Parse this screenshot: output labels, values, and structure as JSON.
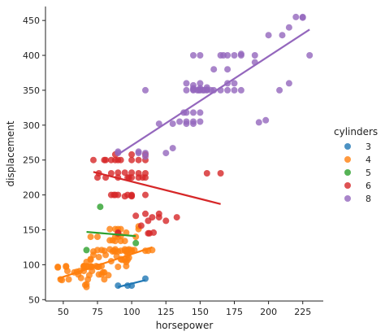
{
  "chart_data": {
    "type": "scatter",
    "xlabel": "horsepower",
    "ylabel": "displacement",
    "xlim": [
      37,
      240
    ],
    "ylim": [
      48,
      470
    ],
    "xticks": [
      50,
      75,
      100,
      125,
      150,
      175,
      200,
      225
    ],
    "yticks": [
      50,
      100,
      150,
      200,
      250,
      300,
      350,
      400,
      450
    ],
    "grid": false,
    "legend": {
      "title": "cylinders",
      "placement": "right"
    },
    "series": [
      {
        "name": "3",
        "color": "#1f77b4",
        "points": [
          [
            90,
            70
          ],
          [
            97,
            70
          ],
          [
            100,
            70
          ],
          [
            110,
            80
          ]
        ],
        "fit": [
          [
            90,
            68
          ],
          [
            110,
            78
          ]
        ]
      },
      {
        "name": "4",
        "color": "#ff7f0e",
        "points": [
          [
            46,
            97
          ],
          [
            46,
            96
          ],
          [
            48,
            79
          ],
          [
            49,
            78
          ],
          [
            52,
            98
          ],
          [
            52,
            97
          ],
          [
            53,
            91
          ],
          [
            54,
            79
          ],
          [
            58,
            89
          ],
          [
            60,
            90
          ],
          [
            61,
            86
          ],
          [
            62,
            91
          ],
          [
            63,
            81
          ],
          [
            65,
            98
          ],
          [
            65,
            98
          ],
          [
            65,
            97
          ],
          [
            65,
            91
          ],
          [
            66,
            71
          ],
          [
            67,
            68
          ],
          [
            67,
            72
          ],
          [
            67,
            98
          ],
          [
            67,
            104
          ],
          [
            68,
            97
          ],
          [
            68,
            79
          ],
          [
            69,
            85
          ],
          [
            70,
            98
          ],
          [
            70,
            97
          ],
          [
            70,
            108
          ],
          [
            70,
            107
          ],
          [
            70,
            140
          ],
          [
            71,
            91
          ],
          [
            71,
            97
          ],
          [
            72,
            119
          ],
          [
            72,
            114
          ],
          [
            74,
            98
          ],
          [
            75,
            97
          ],
          [
            75,
            121
          ],
          [
            75,
            140
          ],
          [
            76,
            97
          ],
          [
            76,
            86
          ],
          [
            76,
            111
          ],
          [
            78,
            86
          ],
          [
            78,
            98
          ],
          [
            78,
            121
          ],
          [
            79,
            89
          ],
          [
            80,
            79
          ],
          [
            80,
            89
          ],
          [
            80,
            120
          ],
          [
            81,
            114
          ],
          [
            83,
            85
          ],
          [
            84,
            122
          ],
          [
            84,
            135
          ],
          [
            84,
            151
          ],
          [
            85,
            105
          ],
          [
            86,
            119
          ],
          [
            86,
            135
          ],
          [
            87,
            120
          ],
          [
            88,
            119
          ],
          [
            88,
            122
          ],
          [
            88,
            134
          ],
          [
            88,
            140
          ],
          [
            88,
            151
          ],
          [
            89,
            112
          ],
          [
            90,
            97
          ],
          [
            90,
            119
          ],
          [
            90,
            140
          ],
          [
            90,
            151
          ],
          [
            92,
            108
          ],
          [
            92,
            120
          ],
          [
            92,
            134
          ],
          [
            92,
            141
          ],
          [
            92,
            151
          ],
          [
            93,
            107
          ],
          [
            95,
            107
          ],
          [
            95,
            120
          ],
          [
            95,
            122
          ],
          [
            95,
            134
          ],
          [
            96,
            98
          ],
          [
            96,
            104
          ],
          [
            96,
            119
          ],
          [
            96,
            146
          ],
          [
            97,
            107
          ],
          [
            97,
            114
          ],
          [
            97,
            119
          ],
          [
            97,
            121
          ],
          [
            98,
            122
          ],
          [
            98,
            110
          ],
          [
            100,
            119
          ],
          [
            100,
            121
          ],
          [
            102,
            121
          ],
          [
            103,
            140
          ],
          [
            105,
            151
          ],
          [
            105,
            155
          ],
          [
            110,
            120
          ],
          [
            112,
            120
          ],
          [
            115,
            121
          ]
        ],
        "fit": [
          [
            46,
            80
          ],
          [
            115,
            125
          ]
        ]
      },
      {
        "name": "5",
        "color": "#2ca02c",
        "points": [
          [
            67,
            121
          ],
          [
            77,
            183
          ],
          [
            103,
            131
          ]
        ],
        "fit": [
          [
            67,
            147
          ],
          [
            103,
            141
          ]
        ]
      },
      {
        "name": "6",
        "color": "#d62728",
        "points": [
          [
            72,
            250
          ],
          [
            75,
            225
          ],
          [
            76,
            231
          ],
          [
            80,
            250
          ],
          [
            81,
            250
          ],
          [
            81,
            225
          ],
          [
            85,
            200
          ],
          [
            85,
            250
          ],
          [
            85,
            231
          ],
          [
            87,
            200
          ],
          [
            88,
            200
          ],
          [
            88,
            250
          ],
          [
            88,
            258
          ],
          [
            90,
            200
          ],
          [
            90,
            250
          ],
          [
            90,
            225
          ],
          [
            90,
            232
          ],
          [
            90,
            145
          ],
          [
            90,
            146
          ],
          [
            92,
            250
          ],
          [
            95,
            232
          ],
          [
            95,
            198
          ],
          [
            97,
            200
          ],
          [
            97,
            225
          ],
          [
            98,
            225
          ],
          [
            100,
            198
          ],
          [
            100,
            225
          ],
          [
            100,
            200
          ],
          [
            100,
            250
          ],
          [
            100,
            258
          ],
          [
            100,
            232
          ],
          [
            100,
            199
          ],
          [
            103,
            170
          ],
          [
            105,
            225
          ],
          [
            105,
            250
          ],
          [
            105,
            231
          ],
          [
            107,
            156
          ],
          [
            108,
            225
          ],
          [
            110,
            225
          ],
          [
            110,
            200
          ],
          [
            110,
            231
          ],
          [
            110,
            250
          ],
          [
            110,
            258
          ],
          [
            110,
            173
          ],
          [
            112,
            145
          ],
          [
            112,
            163
          ],
          [
            113,
            145
          ],
          [
            115,
            168
          ],
          [
            116,
            146
          ],
          [
            120,
            173
          ],
          [
            120,
            168
          ],
          [
            125,
            163
          ],
          [
            133,
            168
          ],
          [
            155,
            231
          ],
          [
            165,
            231
          ]
        ],
        "fit": [
          [
            72,
            233
          ],
          [
            165,
            187
          ]
        ]
      },
      {
        "name": "8",
        "color": "#9467bd",
        "points": [
          [
            90,
            262
          ],
          [
            90,
            260
          ],
          [
            105,
            260
          ],
          [
            105,
            262
          ],
          [
            110,
            260
          ],
          [
            110,
            255
          ],
          [
            110,
            350
          ],
          [
            120,
            302
          ],
          [
            125,
            260
          ],
          [
            130,
            267
          ],
          [
            130,
            302
          ],
          [
            135,
            305
          ],
          [
            138,
            318
          ],
          [
            140,
            302
          ],
          [
            140,
            305
          ],
          [
            140,
            318
          ],
          [
            140,
            350
          ],
          [
            140,
            360
          ],
          [
            145,
            302
          ],
          [
            145,
            305
          ],
          [
            145,
            318
          ],
          [
            145,
            350
          ],
          [
            145,
            400
          ],
          [
            145,
            351
          ],
          [
            145,
            353
          ],
          [
            145,
            357
          ],
          [
            148,
            350
          ],
          [
            149,
            350
          ],
          [
            150,
            305
          ],
          [
            150,
            318
          ],
          [
            150,
            350
          ],
          [
            150,
            360
          ],
          [
            150,
            400
          ],
          [
            150,
            351
          ],
          [
            150,
            353
          ],
          [
            152,
            350
          ],
          [
            153,
            350
          ],
          [
            155,
            350
          ],
          [
            155,
            351
          ],
          [
            155,
            354
          ],
          [
            158,
            350
          ],
          [
            160,
            350
          ],
          [
            160,
            380
          ],
          [
            165,
            400
          ],
          [
            165,
            350
          ],
          [
            167,
            400
          ],
          [
            170,
            400
          ],
          [
            170,
            350
          ],
          [
            170,
            360
          ],
          [
            170,
            380
          ],
          [
            175,
            400
          ],
          [
            175,
            350
          ],
          [
            175,
            360
          ],
          [
            180,
            400
          ],
          [
            180,
            350
          ],
          [
            180,
            402
          ],
          [
            190,
            400
          ],
          [
            190,
            390
          ],
          [
            193,
            304
          ],
          [
            198,
            307
          ],
          [
            200,
            429
          ],
          [
            208,
            350
          ],
          [
            210,
            429
          ],
          [
            215,
            440
          ],
          [
            215,
            360
          ],
          [
            220,
            455
          ],
          [
            225,
            455
          ],
          [
            225,
            454
          ],
          [
            230,
            400
          ]
        ],
        "fit": [
          [
            90,
            258
          ],
          [
            230,
            437
          ]
        ]
      }
    ]
  }
}
